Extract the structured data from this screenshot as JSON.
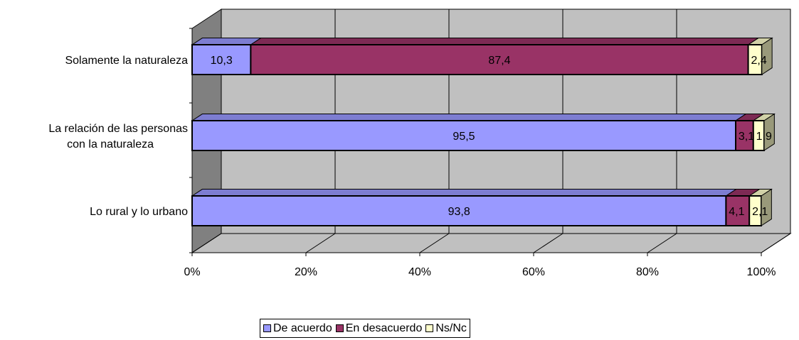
{
  "chart_data": {
    "type": "bar",
    "orientation": "horizontal",
    "stacked": "100%",
    "three_d": true,
    "categories": [
      "Lo rural y lo urbano",
      "La relación de las personas\ncon la naturaleza",
      "Solamente la naturaleza"
    ],
    "series": [
      {
        "name": "De acuerdo",
        "color": "#9999ff",
        "values": [
          93.8,
          95.5,
          10.3
        ],
        "labels": [
          "93,8",
          "95,5",
          "10,3"
        ]
      },
      {
        "name": "En desacuerdo",
        "color": "#993366",
        "values": [
          4.1,
          3.1,
          87.4
        ],
        "labels": [
          "4,1",
          "3,1",
          "87,4"
        ]
      },
      {
        "name": "Ns/Nc",
        "color": "#ffffcc",
        "values": [
          2.1,
          1.9,
          2.4
        ],
        "labels": [
          "2,1",
          "1,9",
          "2,4"
        ]
      }
    ],
    "x_ticks": [
      "0%",
      "20%",
      "40%",
      "60%",
      "80%",
      "100%"
    ],
    "xlim": [
      0,
      100
    ],
    "grid": true,
    "legend_position": "bottom"
  }
}
